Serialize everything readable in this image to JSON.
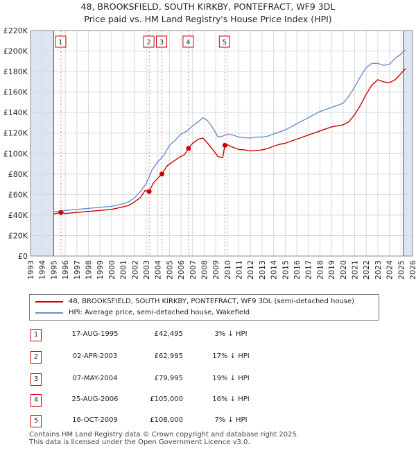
{
  "title_line1": "48, BROOKSFIELD, SOUTH KIRKBY, PONTEFRACT, WF9 3DL",
  "title_line2": "Price paid vs. HM Land Registry's House Price Index (HPI)",
  "colors": {
    "property": "#cc0000",
    "hpi": "#6b8fca",
    "shade": "#dde4f2",
    "grid": "#d8d8d8"
  },
  "chart_data": {
    "type": "line",
    "xlim": [
      1993,
      2026
    ],
    "ylim": [
      0,
      220000
    ],
    "x_ticks": [
      1993,
      1994,
      1995,
      1996,
      1997,
      1998,
      1999,
      2000,
      2001,
      2002,
      2003,
      2004,
      2005,
      2006,
      2007,
      2008,
      2009,
      2010,
      2011,
      2012,
      2013,
      2014,
      2015,
      2016,
      2017,
      2018,
      2019,
      2020,
      2021,
      2022,
      2023,
      2024,
      2025,
      2026
    ],
    "y_ticks": [
      {
        "value": 0,
        "label": "£0"
      },
      {
        "value": 20000,
        "label": "£20K"
      },
      {
        "value": 40000,
        "label": "£40K"
      },
      {
        "value": 60000,
        "label": "£60K"
      },
      {
        "value": 80000,
        "label": "£80K"
      },
      {
        "value": 100000,
        "label": "£100K"
      },
      {
        "value": 120000,
        "label": "£120K"
      },
      {
        "value": 140000,
        "label": "£140K"
      },
      {
        "value": 160000,
        "label": "£160K"
      },
      {
        "value": 180000,
        "label": "£180K"
      },
      {
        "value": 200000,
        "label": "£200K"
      },
      {
        "value": 220000,
        "label": "£220K"
      }
    ],
    "shaded_ranges": [
      [
        1993,
        1995.0
      ],
      [
        2025.2,
        2026
      ]
    ],
    "series": [
      {
        "name": "48, BROOKSFIELD, SOUTH KIRKBY, PONTEFRACT, WF9 3DL (semi-detached house)",
        "color": "#cc0000",
        "x": [
          1995.0,
          1995.63,
          1996,
          1997,
          1998,
          1999,
          2000,
          2001,
          2001.5,
          2002,
          2002.5,
          2002.9,
          2003.25,
          2003.6,
          2004.0,
          2004.35,
          2004.8,
          2005.3,
          2005.8,
          2006.3,
          2006.65,
          2007.0,
          2007.5,
          2007.9,
          2008.3,
          2008.8,
          2009.2,
          2009.6,
          2009.79,
          2010.0,
          2010.5,
          2011.0,
          2011.5,
          2012.0,
          2012.5,
          2013.0,
          2013.5,
          2014.0,
          2014.5,
          2015.0,
          2015.5,
          2016.0,
          2016.5,
          2017.0,
          2017.5,
          2018.0,
          2018.5,
          2019.0,
          2019.5,
          2020.0,
          2020.5,
          2021.0,
          2021.5,
          2022.0,
          2022.5,
          2023.0,
          2023.5,
          2024.0,
          2024.5,
          2025.0,
          2025.4
        ],
        "y": [
          41000,
          42495,
          41500,
          42500,
          43500,
          44500,
          45500,
          48000,
          49500,
          53000,
          57000,
          64000,
          62995,
          71000,
          76000,
          79995,
          88000,
          92000,
          96000,
          99000,
          105000,
          110000,
          114000,
          115000,
          110000,
          103000,
          97000,
          96000,
          108000,
          108500,
          106000,
          104000,
          103500,
          102500,
          103000,
          103500,
          105000,
          107000,
          109000,
          110000,
          112000,
          114000,
          116000,
          118000,
          120000,
          122000,
          124000,
          126000,
          127000,
          128000,
          131000,
          138000,
          147000,
          158000,
          167000,
          172000,
          170000,
          169000,
          172000,
          178000,
          183000
        ]
      },
      {
        "name": "HPI: Average price, semi-detached house, Wakefield",
        "color": "#6b8fca",
        "x": [
          1995.0,
          1995.63,
          1996,
          1997,
          1998,
          1999,
          2000,
          2001,
          2001.5,
          2002,
          2002.5,
          2003.0,
          2003.5,
          2004.0,
          2004.5,
          2005.0,
          2005.5,
          2006.0,
          2006.5,
          2007.0,
          2007.5,
          2007.9,
          2008.3,
          2008.8,
          2009.2,
          2009.6,
          2010.0,
          2010.5,
          2011.0,
          2011.5,
          2012.0,
          2012.5,
          2013.0,
          2013.5,
          2014.0,
          2014.5,
          2015.0,
          2015.5,
          2016.0,
          2016.5,
          2017.0,
          2017.5,
          2018.0,
          2018.5,
          2019.0,
          2019.5,
          2020.0,
          2020.5,
          2021.0,
          2021.5,
          2022.0,
          2022.5,
          2023.0,
          2023.5,
          2024.0,
          2024.5,
          2025.0,
          2025.4
        ],
        "y": [
          43000,
          44000,
          44500,
          45500,
          46500,
          47500,
          48500,
          51000,
          53000,
          57000,
          63000,
          71000,
          84000,
          92000,
          98000,
          108000,
          113000,
          119000,
          122000,
          127000,
          131000,
          135000,
          132000,
          124000,
          116000,
          117000,
          119000,
          118000,
          116000,
          115500,
          115000,
          116000,
          116000,
          117000,
          119000,
          121000,
          123000,
          126000,
          129000,
          132000,
          135000,
          138000,
          141000,
          143000,
          145000,
          147000,
          149000,
          156000,
          165000,
          175000,
          184000,
          188000,
          188000,
          186000,
          187000,
          193000,
          197000,
          201000
        ]
      }
    ],
    "transactions": [
      {
        "num": "1",
        "date": "17-AUG-1995",
        "x": 1995.63,
        "price": 42495,
        "price_label": "£42,495",
        "hpi": "3% ↓ HPI"
      },
      {
        "num": "2",
        "date": "02-APR-2003",
        "x": 2003.25,
        "price": 62995,
        "price_label": "£62,995",
        "hpi": "17% ↓ HPI"
      },
      {
        "num": "3",
        "date": "07-MAY-2004",
        "x": 2004.35,
        "price": 79995,
        "price_label": "£79,995",
        "hpi": "19% ↓ HPI"
      },
      {
        "num": "4",
        "date": "25-AUG-2006",
        "x": 2006.65,
        "price": 105000,
        "price_label": "£105,000",
        "hpi": "16% ↓ HPI"
      },
      {
        "num": "5",
        "date": "16-OCT-2009",
        "x": 2009.79,
        "price": 108000,
        "price_label": "£108,000",
        "hpi": "7% ↓ HPI"
      }
    ]
  },
  "legend": {
    "property": "48, BROOKSFIELD, SOUTH KIRKBY, PONTEFRACT, WF9 3DL (semi-detached house)",
    "hpi": "HPI: Average price, semi-detached house, Wakefield"
  },
  "footer": {
    "line1": "Contains HM Land Registry data © Crown copyright and database right 2025.",
    "line2": "This data is licensed under the Open Government Licence v3.0."
  }
}
